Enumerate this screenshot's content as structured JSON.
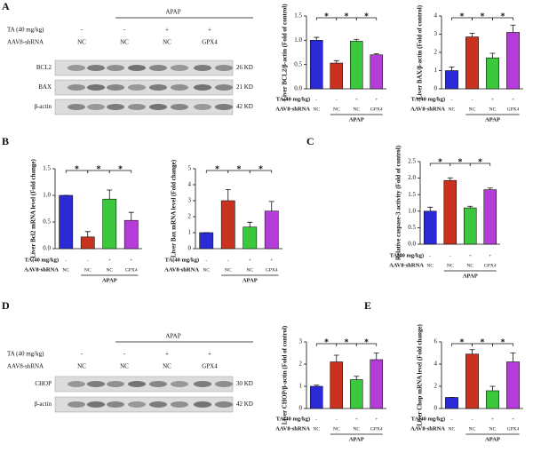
{
  "panel_labels": [
    "A",
    "B",
    "C",
    "D",
    "E"
  ],
  "blots": [
    {
      "group_label": "APAP",
      "rows": [
        {
          "label": "TA (40 mg/kg)",
          "cells": [
            "-",
            "-",
            "+",
            "+"
          ]
        },
        {
          "label": "AAV8-shRNA",
          "cells": [
            "NC",
            "NC",
            "NC",
            "GPX4"
          ]
        }
      ],
      "proteins": [
        {
          "name": "BCL2",
          "size": "26 KD"
        },
        {
          "name": "BAX",
          "size": "21 KD"
        },
        {
          "name": "β-actin",
          "size": "42 KD"
        }
      ]
    },
    {
      "group_label": "APAP",
      "rows": [
        {
          "label": "TA (40 mg/kg)",
          "cells": [
            "-",
            "-",
            "+",
            "+"
          ]
        },
        {
          "label": "AAV8-shRNA",
          "cells": [
            "NC",
            "NC",
            "NC",
            "GPX4"
          ]
        }
      ],
      "proteins": [
        {
          "name": "CHOP",
          "size": "30 KD"
        },
        {
          "name": "β-actin",
          "size": "42 KD"
        }
      ]
    }
  ],
  "chart_data": [
    {
      "type": "bar",
      "y_label": "Liver BCL2/β-actin (Fold of control)",
      "values": [
        1.0,
        0.53,
        0.98,
        0.7
      ],
      "errors": [
        0.06,
        0.05,
        0.04,
        0.02
      ],
      "colors": [
        "#2b2bd6",
        "#c8321e",
        "#3cc83c",
        "#b43cd8"
      ],
      "ylim": [
        0,
        1.5
      ],
      "yticks": [
        {
          "value": 0,
          "label": "0.0"
        },
        {
          "value": 0.5,
          "label": "0.5"
        },
        {
          "value": 1,
          "label": "1.0"
        },
        {
          "value": 1.5,
          "label": "1.5"
        }
      ],
      "significance": [
        "*",
        "*",
        "*"
      ],
      "rows": [
        {
          "label": "TA(40 mg/kg)",
          "cells": [
            "-",
            "-",
            "+",
            "+"
          ]
        },
        {
          "label": "AAV8-shRNA",
          "cells": [
            "NC",
            "NC",
            "NC",
            "GPX4"
          ]
        }
      ],
      "group_label": "APAP"
    },
    {
      "type": "bar",
      "y_label": "Liver BAX/β-actin (Fold of control)",
      "values": [
        1.0,
        2.85,
        1.7,
        3.1
      ],
      "errors": [
        0.2,
        0.2,
        0.25,
        0.4
      ],
      "colors": [
        "#2b2bd6",
        "#c8321e",
        "#3cc83c",
        "#b43cd8"
      ],
      "ylim": [
        0,
        4
      ],
      "yticks": [
        0,
        1,
        2,
        3,
        4
      ],
      "significance": [
        "*",
        "*",
        "*"
      ],
      "rows": [
        {
          "label": "TA(40 mg/kg)",
          "cells": [
            "-",
            "-",
            "+",
            "+"
          ]
        },
        {
          "label": "AAV8-shRNA",
          "cells": [
            "NC",
            "NC",
            "NC",
            "GPX4"
          ]
        }
      ],
      "group_label": "APAP"
    },
    {
      "type": "bar",
      "y_label": "Liver Bcl2 mRNA level (Fold change)",
      "values": [
        1.0,
        0.22,
        0.93,
        0.53
      ],
      "errors": [
        0,
        0.1,
        0.17,
        0.15
      ],
      "colors": [
        "#2b2bd6",
        "#c8321e",
        "#3cc83c",
        "#b43cd8"
      ],
      "ylim": [
        0,
        1.5
      ],
      "yticks": [
        {
          "value": 0,
          "label": "0.0"
        },
        {
          "value": 0.5,
          "label": "0.5"
        },
        {
          "value": 1,
          "label": "1.0"
        },
        {
          "value": 1.5,
          "label": "1.5"
        }
      ],
      "significance": [
        "*",
        "*",
        "*"
      ],
      "rows": [
        {
          "label": "TA(40 mg/kg)",
          "cells": [
            "-",
            "-",
            "+",
            "+"
          ]
        },
        {
          "label": "AAV8-shRNA",
          "cells": [
            "NC",
            "NC",
            "NC",
            "GPX4"
          ]
        }
      ],
      "group_label": "APAP"
    },
    {
      "type": "bar",
      "y_label": "Liver Bax mRNA level (Fold change)",
      "values": [
        1.0,
        3.0,
        1.35,
        2.35
      ],
      "errors": [
        0,
        0.7,
        0.3,
        0.6
      ],
      "colors": [
        "#2b2bd6",
        "#c8321e",
        "#3cc83c",
        "#b43cd8"
      ],
      "ylim": [
        0,
        5
      ],
      "yticks": [
        0,
        1,
        2,
        3,
        4,
        5
      ],
      "significance": [
        "*",
        "*",
        "*"
      ],
      "rows": [
        {
          "label": "TA(40 mg/kg)",
          "cells": [
            "-",
            "-",
            "+",
            "+"
          ]
        },
        {
          "label": "AAV8-shRNA",
          "cells": [
            "NC",
            "NC",
            "NC",
            "GPX4"
          ]
        }
      ],
      "group_label": "APAP"
    },
    {
      "type": "bar",
      "y_label": "Relative caspase-3 activity (Fold of control)",
      "values": [
        1.0,
        1.93,
        1.1,
        1.65
      ],
      "errors": [
        0.12,
        0.08,
        0.05,
        0.05
      ],
      "colors": [
        "#2b2bd6",
        "#c8321e",
        "#3cc83c",
        "#b43cd8"
      ],
      "ylim": [
        0,
        2.5
      ],
      "yticks": [
        {
          "value": 0,
          "label": "0.0"
        },
        {
          "value": 0.5,
          "label": "0.5"
        },
        {
          "value": 1,
          "label": "1.0"
        },
        {
          "value": 1.5,
          "label": "1.5"
        },
        {
          "value": 2,
          "label": "2.0"
        },
        {
          "value": 2.5,
          "label": "2.5"
        }
      ],
      "significance": [
        "*",
        "*",
        "*"
      ],
      "rows": [
        {
          "label": "TA(40 mg/kg)",
          "cells": [
            "-",
            "-",
            "+",
            "+"
          ]
        },
        {
          "label": "AAV8-shRNA",
          "cells": [
            "NC",
            "NC",
            "NC",
            "GPX4"
          ]
        }
      ],
      "group_label": "APAP"
    },
    {
      "type": "bar",
      "y_label": "Liver CHOP/β-actin (Fold of control)",
      "values": [
        1.0,
        2.1,
        1.3,
        2.2
      ],
      "errors": [
        0.05,
        0.3,
        0.15,
        0.3
      ],
      "colors": [
        "#2b2bd6",
        "#c8321e",
        "#3cc83c",
        "#b43cd8"
      ],
      "ylim": [
        0,
        3
      ],
      "yticks": [
        0,
        1,
        2,
        3
      ],
      "significance": [
        "*",
        "*",
        "*"
      ],
      "rows": [
        {
          "label": "TA(40 mg/kg)",
          "cells": [
            "-",
            "-",
            "+",
            "+"
          ]
        },
        {
          "label": "AAV8-shRNA",
          "cells": [
            "NC",
            "NC",
            "NC",
            "GPX4"
          ]
        }
      ],
      "group_label": "APAP"
    },
    {
      "type": "bar",
      "y_label": "Liver Chop mRNA level (Fold change)",
      "values": [
        1.0,
        4.9,
        1.6,
        4.2
      ],
      "errors": [
        0,
        0.4,
        0.4,
        0.8
      ],
      "colors": [
        "#2b2bd6",
        "#c8321e",
        "#3cc83c",
        "#b43cd8"
      ],
      "ylim": [
        0,
        6
      ],
      "yticks": [
        0,
        2,
        4,
        6
      ],
      "significance": [
        "*",
        "*",
        "*"
      ],
      "rows": [
        {
          "label": "TA(40 mg/kg)",
          "cells": [
            "-",
            "-",
            "+",
            "+"
          ]
        },
        {
          "label": "AAV8-shRNA",
          "cells": [
            "NC",
            "NC",
            "NC",
            "GPX4"
          ]
        }
      ],
      "group_label": "APAP"
    }
  ]
}
